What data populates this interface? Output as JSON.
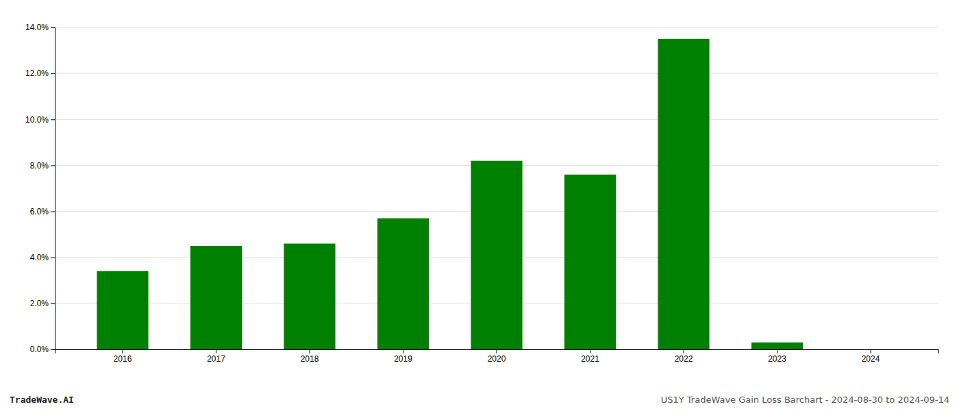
{
  "chart_data": {
    "type": "bar",
    "categories": [
      "2016",
      "2017",
      "2018",
      "2019",
      "2020",
      "2021",
      "2022",
      "2023",
      "2024"
    ],
    "values": [
      0.034,
      0.045,
      0.046,
      0.057,
      0.082,
      0.076,
      0.135,
      0.003,
      0.0
    ],
    "color": "#008000",
    "ylim": [
      0,
      0.14
    ],
    "yticks": [
      {
        "value": 0.0,
        "label": "0.0%"
      },
      {
        "value": 0.02,
        "label": "2.0%"
      },
      {
        "value": 0.04,
        "label": "4.0%"
      },
      {
        "value": 0.06,
        "label": "6.0%"
      },
      {
        "value": 0.08,
        "label": "8.0%"
      },
      {
        "value": 0.1,
        "label": "10.0%"
      },
      {
        "value": 0.12,
        "label": "12.0%"
      },
      {
        "value": 0.14,
        "label": "14.0%"
      }
    ],
    "grid": true,
    "annotations": [
      "TradeWave.AI",
      "US1Y TradeWave Gain Loss Barchart - 2024-08-30 to 2024-09-14"
    ]
  }
}
